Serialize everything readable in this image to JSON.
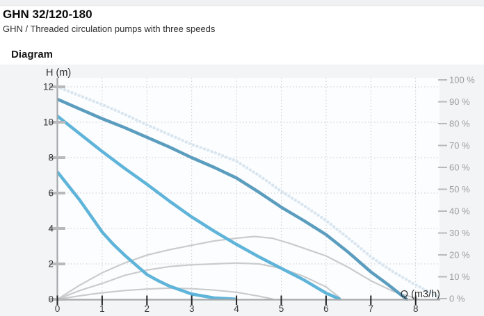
{
  "header": {
    "title": "GHN 32/120-180",
    "subtitle": "GHN / Threaded circulation pumps with three speeds"
  },
  "section": {
    "heading": "Diagram"
  },
  "chart_data": {
    "type": "line",
    "title": "",
    "xlabel": "Q (m3/h)",
    "ylabel": "H (m)",
    "xlim": [
      0,
      8.5
    ],
    "ylim": [
      0,
      12
    ],
    "y2lim": [
      0,
      100
    ],
    "grid": true,
    "legend": "none",
    "x_ticks": [
      0,
      1,
      2,
      3,
      4,
      5,
      6,
      7,
      8
    ],
    "y_ticks": [
      0,
      2,
      4,
      6,
      8,
      10,
      12
    ],
    "y2_tick_labels": [
      "100 %",
      "90 %",
      "80 %",
      "70 %",
      "60 %",
      "50 %",
      "40 %",
      "30 %",
      "20 %",
      "10 %",
      "0 %"
    ],
    "y2_tick_values": [
      100,
      90,
      80,
      70,
      60,
      50,
      40,
      30,
      20,
      10,
      0
    ],
    "series": [
      {
        "name": "efficiency-curve-speed-1",
        "style": "solid",
        "color": "#c9cbcd",
        "width": 2.2,
        "points": [
          [
            0,
            0
          ],
          [
            0.5,
            0.2
          ],
          [
            1,
            0.37
          ],
          [
            1.5,
            0.5
          ],
          [
            2,
            0.58
          ],
          [
            2.5,
            0.63
          ],
          [
            3,
            0.6
          ],
          [
            3.5,
            0.52
          ],
          [
            4,
            0.4
          ],
          [
            4.5,
            0.18
          ],
          [
            4.8,
            0.02
          ]
        ]
      },
      {
        "name": "efficiency-curve-speed-2",
        "style": "solid",
        "color": "#c9cbcd",
        "width": 2.2,
        "points": [
          [
            0,
            0
          ],
          [
            0.5,
            0.5
          ],
          [
            1,
            0.9
          ],
          [
            1.5,
            1.35
          ],
          [
            2,
            1.65
          ],
          [
            2.5,
            1.85
          ],
          [
            3,
            1.95
          ],
          [
            3.5,
            2.0
          ],
          [
            4,
            2.05
          ],
          [
            4.5,
            2.0
          ],
          [
            5,
            1.75
          ],
          [
            5.5,
            1.3
          ],
          [
            6,
            0.7
          ],
          [
            6.3,
            0.1
          ]
        ]
      },
      {
        "name": "efficiency-curve-speed-3",
        "style": "solid",
        "color": "#c9cbcd",
        "width": 2.2,
        "points": [
          [
            0,
            0
          ],
          [
            0.5,
            0.8
          ],
          [
            1,
            1.5
          ],
          [
            1.5,
            2.05
          ],
          [
            2,
            2.5
          ],
          [
            2.5,
            2.8
          ],
          [
            3,
            3.05
          ],
          [
            3.5,
            3.3
          ],
          [
            4,
            3.45
          ],
          [
            4.4,
            3.55
          ],
          [
            4.8,
            3.45
          ],
          [
            5.2,
            3.15
          ],
          [
            5.6,
            2.8
          ],
          [
            6,
            2.45
          ],
          [
            6.5,
            1.8
          ],
          [
            7,
            1.05
          ],
          [
            7.5,
            0.45
          ],
          [
            8.05,
            0.02
          ]
        ]
      },
      {
        "name": "max-head-limit-curve",
        "style": "dotted",
        "color": "#d9e6f0",
        "width": 4.5,
        "points": [
          [
            0,
            12
          ],
          [
            0.5,
            11.5
          ],
          [
            1,
            11.0
          ],
          [
            1.5,
            10.45
          ],
          [
            2,
            9.85
          ],
          [
            2.5,
            9.3
          ],
          [
            3,
            8.75
          ],
          [
            3.5,
            8.3
          ],
          [
            4,
            7.8
          ],
          [
            4.5,
            7.0
          ],
          [
            5,
            6.1
          ],
          [
            5.5,
            5.3
          ],
          [
            6,
            4.45
          ],
          [
            6.5,
            3.45
          ],
          [
            7,
            2.4
          ],
          [
            7.5,
            1.55
          ],
          [
            8,
            0.82
          ],
          [
            8.5,
            0.15
          ]
        ]
      },
      {
        "name": "pump-curve-speed-3",
        "style": "solid",
        "color": "#5b9dbe",
        "width": 4.5,
        "points": [
          [
            0,
            11.3
          ],
          [
            0.5,
            10.75
          ],
          [
            1,
            10.2
          ],
          [
            1.5,
            9.7
          ],
          [
            2,
            9.15
          ],
          [
            2.5,
            8.6
          ],
          [
            3,
            8.0
          ],
          [
            3.5,
            7.45
          ],
          [
            4,
            6.85
          ],
          [
            4.5,
            6.05
          ],
          [
            5,
            5.2
          ],
          [
            5.5,
            4.45
          ],
          [
            6,
            3.65
          ],
          [
            6.5,
            2.65
          ],
          [
            7,
            1.55
          ],
          [
            7.4,
            0.8
          ],
          [
            7.8,
            0
          ]
        ]
      },
      {
        "name": "pump-curve-speed-2",
        "style": "solid",
        "color": "#5fb4d9",
        "width": 4.5,
        "points": [
          [
            0,
            10.35
          ],
          [
            0.5,
            9.35
          ],
          [
            1,
            8.35
          ],
          [
            1.5,
            7.4
          ],
          [
            2,
            6.5
          ],
          [
            2.5,
            5.55
          ],
          [
            3,
            4.65
          ],
          [
            3.5,
            3.85
          ],
          [
            4,
            3.1
          ],
          [
            4.5,
            2.4
          ],
          [
            5,
            1.75
          ],
          [
            5.5,
            1.1
          ],
          [
            6,
            0.35
          ],
          [
            6.3,
            0.02
          ]
        ]
      },
      {
        "name": "pump-curve-speed-1",
        "style": "solid",
        "color": "#5fb4d9",
        "width": 4.5,
        "points": [
          [
            0,
            7.2
          ],
          [
            0.25,
            6.4
          ],
          [
            0.5,
            5.6
          ],
          [
            0.75,
            4.7
          ],
          [
            1,
            3.8
          ],
          [
            1.25,
            3.1
          ],
          [
            1.5,
            2.5
          ],
          [
            1.75,
            1.95
          ],
          [
            2,
            1.4
          ],
          [
            2.25,
            1.05
          ],
          [
            2.5,
            0.75
          ],
          [
            3,
            0.3
          ],
          [
            3.5,
            0.08
          ],
          [
            3.95,
            0.02
          ]
        ]
      }
    ],
    "colors": {
      "plot_bg": "#fcfdfe",
      "panel_bg": "#f3f4f6",
      "grid": "#c7c9cb",
      "axis": "#a6a9ac",
      "tick_label": "#3a3a3a",
      "x_tick_mark": "#222222",
      "y_tick_mark": "#b7b9bb",
      "y2_label": "#9b9ea1",
      "axis_title": "#2e2e2e"
    }
  }
}
